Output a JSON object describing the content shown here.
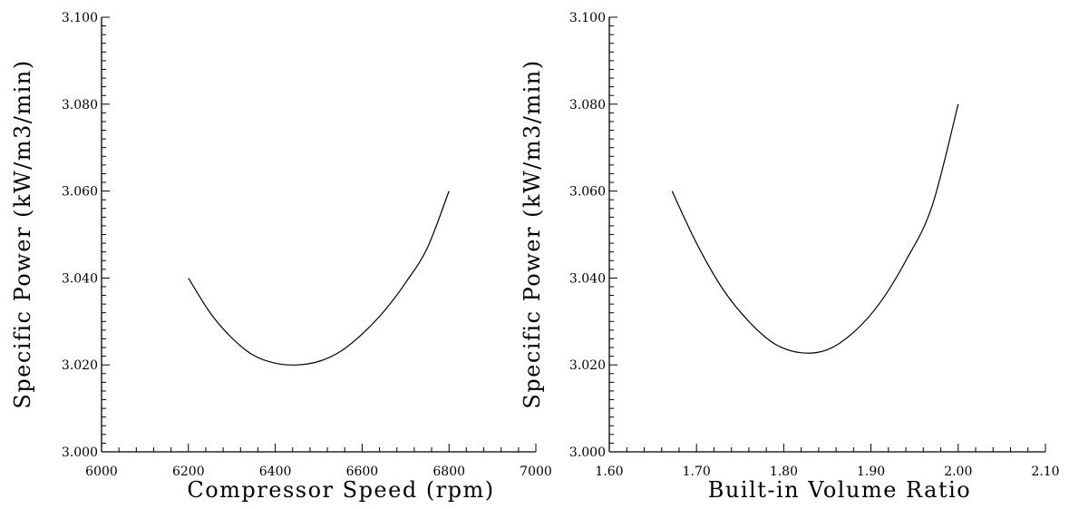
{
  "chart_data": [
    {
      "type": "line",
      "title": "",
      "xlabel": "Compressor Speed (rpm)",
      "ylabel": "Specific Power (kW/m3/min)",
      "xlim": [
        6000,
        7000
      ],
      "ylim": [
        3.0,
        3.1
      ],
      "xticks": [
        "6000",
        "6200",
        "6400",
        "6600",
        "6800",
        "7000"
      ],
      "yticks": [
        "3.000",
        "3.020",
        "3.040",
        "3.060",
        "3.080",
        "3.100"
      ],
      "grid": false,
      "series": [
        {
          "x": [
            6200,
            6250,
            6300,
            6350,
            6400,
            6450,
            6500,
            6550,
            6600,
            6650,
            6700,
            6750,
            6800
          ],
          "y": [
            3.04,
            3.032,
            3.0262,
            3.0222,
            3.0204,
            3.02,
            3.0208,
            3.0231,
            3.0271,
            3.0323,
            3.0389,
            3.0469,
            3.06
          ]
        }
      ]
    },
    {
      "type": "line",
      "title": "",
      "xlabel": "Built-in Volume Ratio",
      "ylabel": "Specific Power (kW/m3/min)",
      "xlim": [
        1.6,
        2.1
      ],
      "ylim": [
        3.0,
        3.1
      ],
      "xticks": [
        "1.60",
        "1.70",
        "1.80",
        "1.90",
        "2.00",
        "2.10"
      ],
      "yticks": [
        "3.000",
        "3.020",
        "3.040",
        "3.060",
        "3.080",
        "3.100"
      ],
      "grid": false,
      "series": [
        {
          "x": [
            1.672,
            1.7,
            1.73,
            1.76,
            1.79,
            1.82,
            1.85,
            1.88,
            1.91,
            1.94,
            1.97,
            2.0
          ],
          "y": [
            3.06,
            3.048,
            3.0375,
            3.03,
            3.0248,
            3.0228,
            3.0235,
            3.0275,
            3.0342,
            3.044,
            3.0565,
            3.08
          ]
        }
      ]
    }
  ]
}
